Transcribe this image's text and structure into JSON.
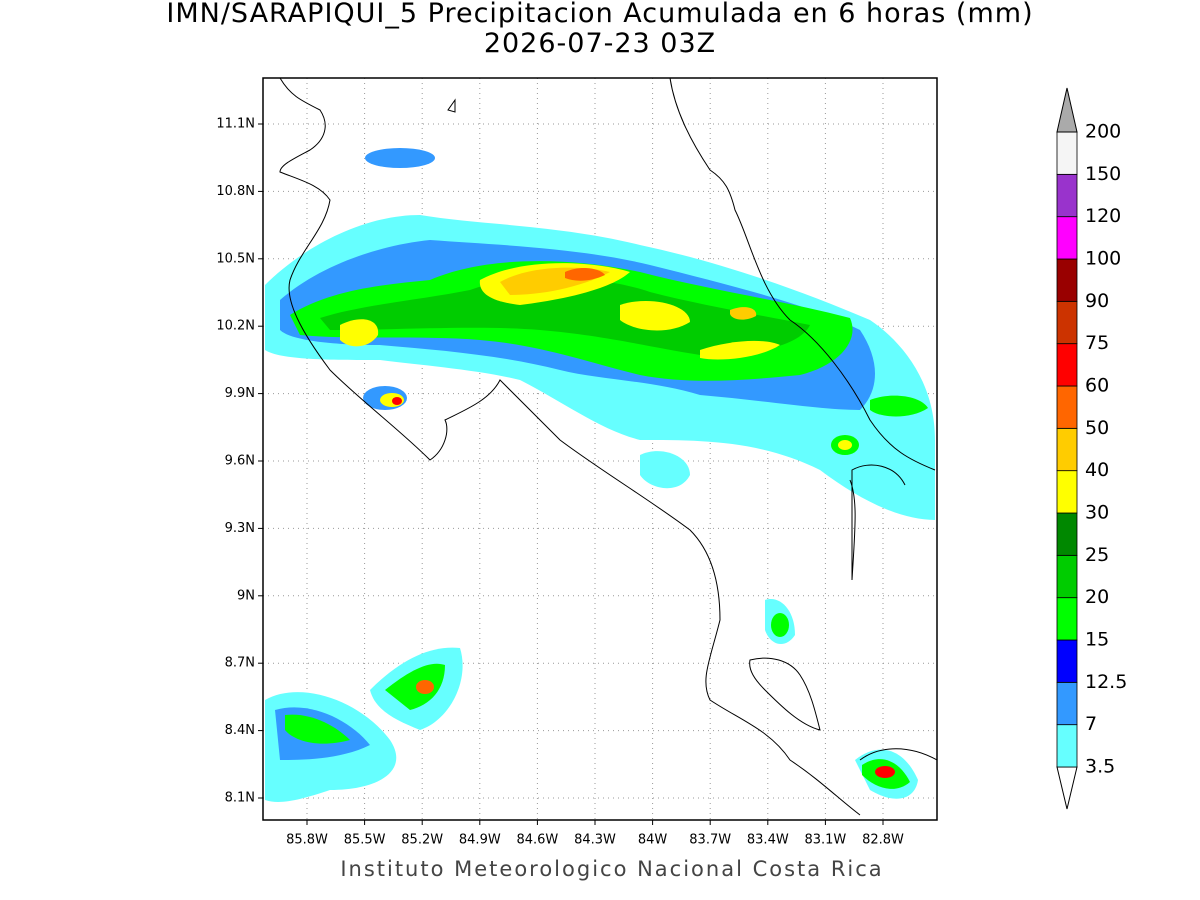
{
  "title": "IMN/SARAPIQUI_5 Precipitacion Acumulada en 6 horas (mm)",
  "subtitle": "2026-07-23 03Z",
  "map": {
    "lon_labels": [
      "85.8W",
      "85.5W",
      "85.2W",
      "84.9W",
      "84.6W",
      "84.3W",
      "84W",
      "83.7W",
      "83.4W",
      "83.1W",
      "82.8W"
    ],
    "lat_labels": [
      "11.1N",
      "10.8N",
      "10.5N",
      "10.2N",
      "9.9N",
      "9.6N",
      "9.3N",
      "9N",
      "8.7N",
      "8.4N",
      "8.1N"
    ]
  },
  "colorbar": {
    "labels": [
      "3.5",
      "7",
      "12.5",
      "15",
      "20",
      "25",
      "30",
      "40",
      "50",
      "60",
      "75",
      "90",
      "100",
      "120",
      "150",
      "200"
    ],
    "colors": [
      "#ffffff",
      "#66ffff",
      "#3399ff",
      "#0000ff",
      "#00ff00",
      "#00cc00",
      "#008800",
      "#ffff00",
      "#ffcc00",
      "#ff6600",
      "#ff0000",
      "#cc3300",
      "#990000",
      "#ff00ff",
      "#9933cc",
      "#f5f5f5",
      "#aaaaaa"
    ]
  },
  "footer": "Instituto Meteorologico Nacional Costa Rica"
}
